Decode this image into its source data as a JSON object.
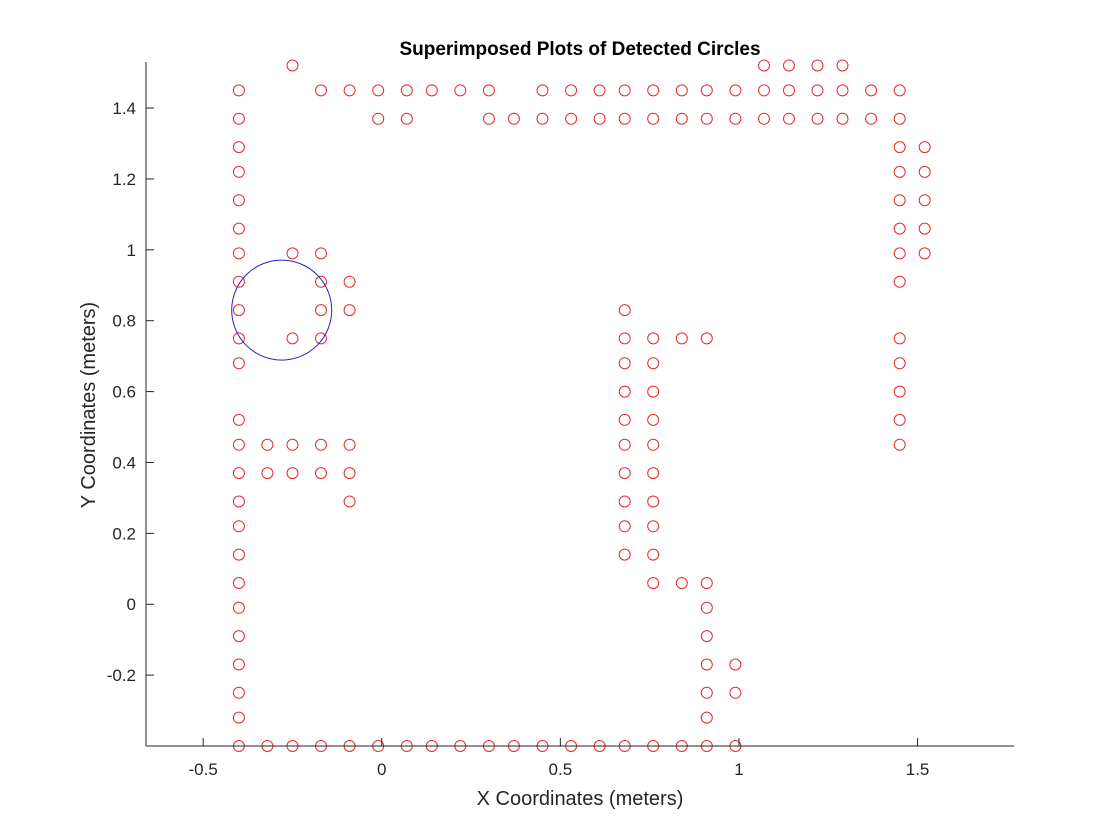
{
  "chart_data": {
    "type": "scatter",
    "title": "Superimposed Plots of Detected Circles",
    "xlabel": "X Coordinates (meters)",
    "ylabel": "Y Coordinates (meters)",
    "xlim": [
      -0.66,
      1.77
    ],
    "ylim": [
      -0.4,
      1.53
    ],
    "xticks": [
      -0.5,
      0,
      0.5,
      1,
      1.5
    ],
    "xtick_labels": [
      "-0.5",
      "0",
      "0.5",
      "1",
      "1.5"
    ],
    "yticks": [
      -0.2,
      0,
      0.2,
      0.4,
      0.6,
      0.8,
      1,
      1.2,
      1.4
    ],
    "ytick_labels": [
      "-0.2",
      "0",
      "0.2",
      "0.4",
      "0.6",
      "0.8",
      "1",
      "1.2",
      "1.4"
    ],
    "grid": false,
    "colors": {
      "markers": "#e8292b",
      "large_circle": "#2222cc",
      "axes": "#262626"
    },
    "large_circle": {
      "center": [
        -0.28,
        0.83
      ],
      "radius": 0.14
    },
    "points": [
      [
        -0.25,
        1.52
      ],
      [
        1.07,
        1.52
      ],
      [
        1.14,
        1.52
      ],
      [
        1.22,
        1.52
      ],
      [
        1.29,
        1.52
      ],
      [
        -0.4,
        1.45
      ],
      [
        -0.17,
        1.45
      ],
      [
        -0.09,
        1.45
      ],
      [
        -0.01,
        1.45
      ],
      [
        0.07,
        1.45
      ],
      [
        0.14,
        1.45
      ],
      [
        0.22,
        1.45
      ],
      [
        0.3,
        1.45
      ],
      [
        0.45,
        1.45
      ],
      [
        0.53,
        1.45
      ],
      [
        0.61,
        1.45
      ],
      [
        0.68,
        1.45
      ],
      [
        0.76,
        1.45
      ],
      [
        0.84,
        1.45
      ],
      [
        0.91,
        1.45
      ],
      [
        0.99,
        1.45
      ],
      [
        1.07,
        1.45
      ],
      [
        1.14,
        1.45
      ],
      [
        1.22,
        1.45
      ],
      [
        1.29,
        1.45
      ],
      [
        1.37,
        1.45
      ],
      [
        1.45,
        1.45
      ],
      [
        -0.4,
        1.37
      ],
      [
        -0.01,
        1.37
      ],
      [
        0.07,
        1.37
      ],
      [
        0.3,
        1.37
      ],
      [
        0.37,
        1.37
      ],
      [
        0.45,
        1.37
      ],
      [
        0.53,
        1.37
      ],
      [
        0.61,
        1.37
      ],
      [
        0.68,
        1.37
      ],
      [
        0.76,
        1.37
      ],
      [
        0.84,
        1.37
      ],
      [
        0.91,
        1.37
      ],
      [
        0.99,
        1.37
      ],
      [
        1.07,
        1.37
      ],
      [
        1.14,
        1.37
      ],
      [
        1.22,
        1.37
      ],
      [
        1.29,
        1.37
      ],
      [
        1.37,
        1.37
      ],
      [
        1.45,
        1.37
      ],
      [
        -0.4,
        1.29
      ],
      [
        1.45,
        1.29
      ],
      [
        1.52,
        1.29
      ],
      [
        -0.4,
        1.22
      ],
      [
        1.45,
        1.22
      ],
      [
        1.52,
        1.22
      ],
      [
        -0.4,
        1.14
      ],
      [
        1.45,
        1.14
      ],
      [
        1.52,
        1.14
      ],
      [
        -0.4,
        1.06
      ],
      [
        1.45,
        1.06
      ],
      [
        1.52,
        1.06
      ],
      [
        -0.4,
        0.99
      ],
      [
        -0.25,
        0.99
      ],
      [
        -0.17,
        0.99
      ],
      [
        1.45,
        0.99
      ],
      [
        1.52,
        0.99
      ],
      [
        -0.4,
        0.91
      ],
      [
        -0.17,
        0.91
      ],
      [
        -0.09,
        0.91
      ],
      [
        1.45,
        0.91
      ],
      [
        -0.4,
        0.83
      ],
      [
        -0.17,
        0.83
      ],
      [
        -0.09,
        0.83
      ],
      [
        0.68,
        0.83
      ],
      [
        -0.4,
        0.75
      ],
      [
        -0.25,
        0.75
      ],
      [
        -0.17,
        0.75
      ],
      [
        0.68,
        0.75
      ],
      [
        0.76,
        0.75
      ],
      [
        0.84,
        0.75
      ],
      [
        0.91,
        0.75
      ],
      [
        1.45,
        0.75
      ],
      [
        -0.4,
        0.68
      ],
      [
        0.68,
        0.68
      ],
      [
        0.76,
        0.68
      ],
      [
        1.45,
        0.68
      ],
      [
        0.68,
        0.6
      ],
      [
        0.76,
        0.6
      ],
      [
        1.45,
        0.6
      ],
      [
        -0.4,
        0.52
      ],
      [
        0.68,
        0.52
      ],
      [
        0.76,
        0.52
      ],
      [
        1.45,
        0.52
      ],
      [
        -0.4,
        0.45
      ],
      [
        -0.32,
        0.45
      ],
      [
        -0.25,
        0.45
      ],
      [
        -0.17,
        0.45
      ],
      [
        -0.09,
        0.45
      ],
      [
        0.68,
        0.45
      ],
      [
        0.76,
        0.45
      ],
      [
        1.45,
        0.45
      ],
      [
        -0.4,
        0.37
      ],
      [
        -0.32,
        0.37
      ],
      [
        -0.25,
        0.37
      ],
      [
        -0.17,
        0.37
      ],
      [
        -0.09,
        0.37
      ],
      [
        0.68,
        0.37
      ],
      [
        0.76,
        0.37
      ],
      [
        -0.4,
        0.29
      ],
      [
        -0.09,
        0.29
      ],
      [
        0.68,
        0.29
      ],
      [
        0.76,
        0.29
      ],
      [
        -0.4,
        0.22
      ],
      [
        0.68,
        0.22
      ],
      [
        0.76,
        0.22
      ],
      [
        -0.4,
        0.14
      ],
      [
        0.68,
        0.14
      ],
      [
        0.76,
        0.14
      ],
      [
        -0.4,
        0.06
      ],
      [
        0.76,
        0.06
      ],
      [
        0.84,
        0.06
      ],
      [
        0.91,
        0.06
      ],
      [
        -0.4,
        -0.01
      ],
      [
        0.91,
        -0.01
      ],
      [
        -0.4,
        -0.09
      ],
      [
        0.91,
        -0.09
      ],
      [
        -0.4,
        -0.17
      ],
      [
        0.91,
        -0.17
      ],
      [
        0.99,
        -0.17
      ],
      [
        -0.4,
        -0.25
      ],
      [
        0.91,
        -0.25
      ],
      [
        0.99,
        -0.25
      ],
      [
        -0.4,
        -0.32
      ],
      [
        0.91,
        -0.32
      ],
      [
        -0.4,
        -0.4
      ],
      [
        -0.32,
        -0.4
      ],
      [
        -0.25,
        -0.4
      ],
      [
        -0.17,
        -0.4
      ],
      [
        -0.09,
        -0.4
      ],
      [
        -0.01,
        -0.4
      ],
      [
        0.07,
        -0.4
      ],
      [
        0.14,
        -0.4
      ],
      [
        0.22,
        -0.4
      ],
      [
        0.3,
        -0.4
      ],
      [
        0.37,
        -0.4
      ],
      [
        0.45,
        -0.4
      ],
      [
        0.53,
        -0.4
      ],
      [
        0.61,
        -0.4
      ],
      [
        0.68,
        -0.4
      ],
      [
        0.76,
        -0.4
      ],
      [
        0.84,
        -0.4
      ],
      [
        0.91,
        -0.4
      ],
      [
        0.99,
        -0.4
      ]
    ]
  }
}
